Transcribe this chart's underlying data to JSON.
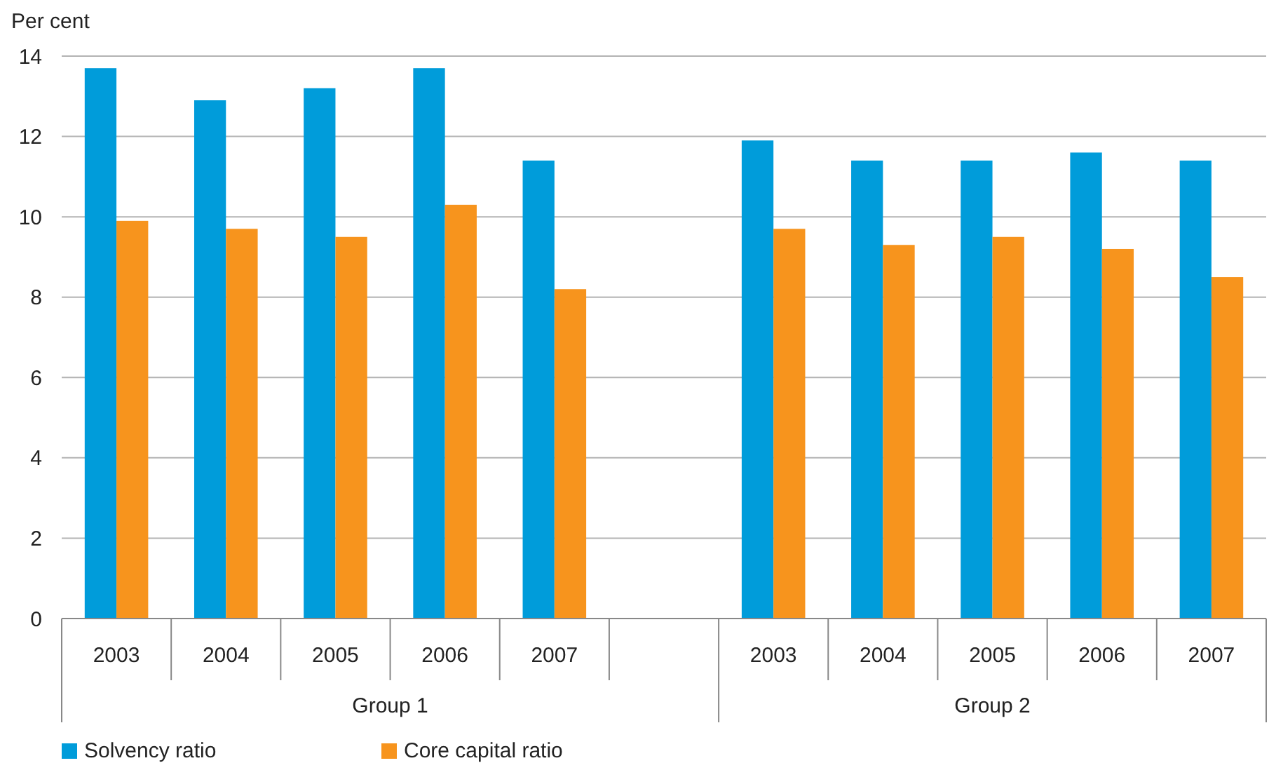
{
  "chart_data": {
    "type": "bar",
    "ylabel": "Per cent",
    "categories": [
      "2003",
      "2004",
      "2005",
      "2006",
      "2007",
      null,
      "2003",
      "2004",
      "2005",
      "2006",
      "2007"
    ],
    "series": [
      {
        "name": "Solvency ratio",
        "color": "#009cda",
        "values": [
          13.7,
          12.9,
          13.2,
          13.7,
          11.4,
          null,
          11.9,
          11.4,
          11.4,
          11.6,
          11.4
        ]
      },
      {
        "name": "Core capital ratio",
        "color": "#f7941d",
        "values": [
          9.9,
          9.7,
          9.5,
          10.3,
          8.2,
          null,
          9.7,
          9.3,
          9.5,
          9.2,
          8.5
        ]
      }
    ],
    "annotations": [
      "Group 1",
      "Group 2"
    ],
    "ylim": [
      0,
      14
    ],
    "yticks": [
      0,
      2,
      4,
      6,
      8,
      10,
      12,
      14
    ],
    "grid": "y",
    "legend": "bottom left"
  }
}
